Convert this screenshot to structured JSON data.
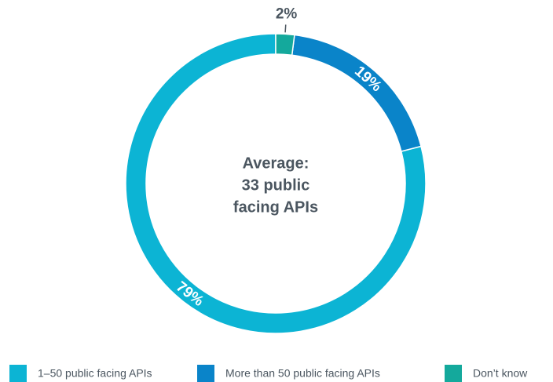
{
  "chart_data": {
    "type": "donut",
    "center_label": [
      "Average:",
      "33 public",
      "facing APIs"
    ],
    "categories": [
      "1–50 public facing APIs",
      "More than 50 public facing APIs",
      "Don’t know"
    ],
    "values": [
      79,
      19,
      2
    ],
    "value_labels": [
      "79%",
      "19%",
      "2%"
    ],
    "colors": [
      "#0cb4d4",
      "#0a84c9",
      "#14a99c"
    ],
    "legend": "bottom"
  }
}
